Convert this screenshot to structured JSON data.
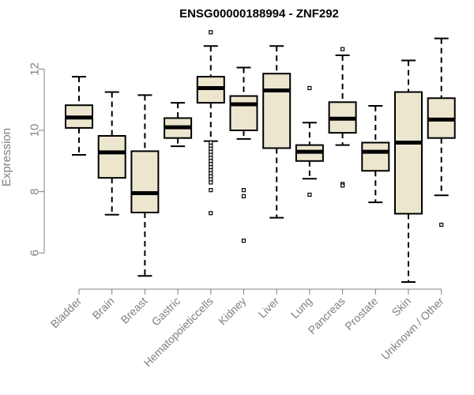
{
  "chart_data": {
    "type": "boxplot",
    "title": "ENSG00000188994 - ZNF292",
    "xlabel": "",
    "ylabel": "Expression",
    "ylim": [
      4.9,
      13.3
    ],
    "yticks": [
      6,
      8,
      10,
      12
    ],
    "colors": {
      "box_fill": "#ede6cf",
      "stroke": "#000000",
      "axis": "#808080"
    },
    "categories": [
      "Bladder",
      "Brain",
      "Breast",
      "Gastric",
      "Hematopoietic cells",
      "Kidney",
      "Liver",
      "Lung",
      "Pancreas",
      "Prostate",
      "Skin",
      "Unknown / Other"
    ],
    "display_categories": [
      "Bladder",
      "Brain",
      "Breast",
      "Gastric",
      "Hematopoieticcells",
      "Kidney",
      "Liver",
      "Lung",
      "Pancreas",
      "Prostate",
      "Skin",
      "Unknown / Other"
    ],
    "boxes": [
      {
        "name": "Bladder",
        "whisker_low": 9.2,
        "q1": 10.08,
        "median": 10.42,
        "q3": 10.82,
        "whisker_high": 11.75,
        "outliers": []
      },
      {
        "name": "Brain",
        "whisker_low": 7.25,
        "q1": 8.45,
        "median": 9.28,
        "q3": 9.82,
        "whisker_high": 11.25,
        "outliers": []
      },
      {
        "name": "Breast",
        "whisker_low": 5.25,
        "q1": 7.32,
        "median": 7.95,
        "q3": 9.32,
        "whisker_high": 11.15,
        "outliers": []
      },
      {
        "name": "Gastric",
        "whisker_low": 9.48,
        "q1": 9.75,
        "median": 10.1,
        "q3": 10.4,
        "whisker_high": 10.9,
        "outliers": []
      },
      {
        "name": "Hematopoietic cells",
        "whisker_low": 9.65,
        "q1": 10.9,
        "median": 11.38,
        "q3": 11.75,
        "whisker_high": 12.75,
        "outliers": [
          13.2,
          9.6,
          9.5,
          9.4,
          9.3,
          9.2,
          9.1,
          9.0,
          8.9,
          8.8,
          8.7,
          8.6,
          8.5,
          8.4,
          8.3,
          8.05,
          7.3
        ]
      },
      {
        "name": "Kidney",
        "whisker_low": 9.72,
        "q1": 10.0,
        "median": 10.85,
        "q3": 11.12,
        "whisker_high": 12.05,
        "outliers": [
          8.05,
          7.85,
          6.4
        ]
      },
      {
        "name": "Liver",
        "whisker_low": 7.15,
        "q1": 9.42,
        "median": 11.3,
        "q3": 11.85,
        "whisker_high": 12.75,
        "outliers": []
      },
      {
        "name": "Lung",
        "whisker_low": 8.42,
        "q1": 9.0,
        "median": 9.3,
        "q3": 9.52,
        "whisker_high": 10.25,
        "outliers": [
          11.38,
          7.9
        ]
      },
      {
        "name": "Pancreas",
        "whisker_low": 9.52,
        "q1": 9.92,
        "median": 10.38,
        "q3": 10.92,
        "whisker_high": 12.45,
        "outliers": [
          12.65,
          8.25,
          8.2
        ]
      },
      {
        "name": "Prostate",
        "whisker_low": 7.65,
        "q1": 8.68,
        "median": 9.3,
        "q3": 9.6,
        "whisker_high": 10.8,
        "outliers": []
      },
      {
        "name": "Skin",
        "whisker_low": 5.05,
        "q1": 7.28,
        "median": 9.6,
        "q3": 11.25,
        "whisker_high": 12.28,
        "outliers": []
      },
      {
        "name": "Unknown / Other",
        "whisker_low": 7.88,
        "q1": 9.75,
        "median": 10.35,
        "q3": 11.05,
        "whisker_high": 13.0,
        "outliers": [
          6.92
        ]
      }
    ]
  }
}
